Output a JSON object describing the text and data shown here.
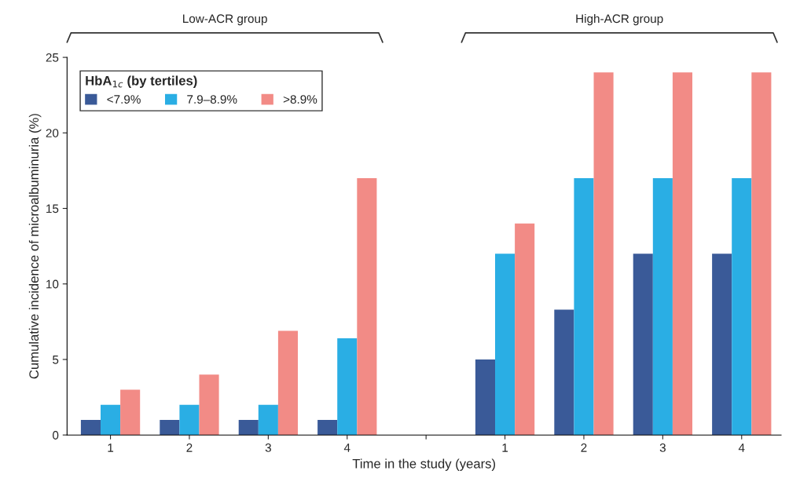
{
  "chart_data": {
    "type": "bar",
    "categories": [
      "1",
      "2",
      "3",
      "4",
      null,
      "1",
      "2",
      "3",
      "4"
    ],
    "series": [
      {
        "name": "<7.9%",
        "color": "#3a5a98",
        "values": [
          1,
          1,
          1,
          1,
          null,
          5,
          8.3,
          12,
          12
        ]
      },
      {
        "name": "7.9–8.9%",
        "color": "#2aaee4",
        "values": [
          2,
          2,
          2,
          6.4,
          null,
          12,
          17,
          17,
          17
        ]
      },
      {
        "name": ">8.9%",
        "color": "#f28b86",
        "values": [
          3,
          4,
          6.9,
          17,
          null,
          14,
          24,
          24,
          24
        ]
      }
    ],
    "xlabel": "Time in the study (years)",
    "ylabel": "Cumulative incidence of microalbuminuria (%)",
    "legend_title": "HbA$_{1c}$ (by tertiles)",
    "legend": "top left",
    "annotations": [
      "Low-ACR group",
      "High-ACR group"
    ],
    "ylim": [
      0,
      25
    ],
    "yticks": [
      0,
      5,
      10,
      15,
      20,
      25
    ],
    "grid": false
  }
}
